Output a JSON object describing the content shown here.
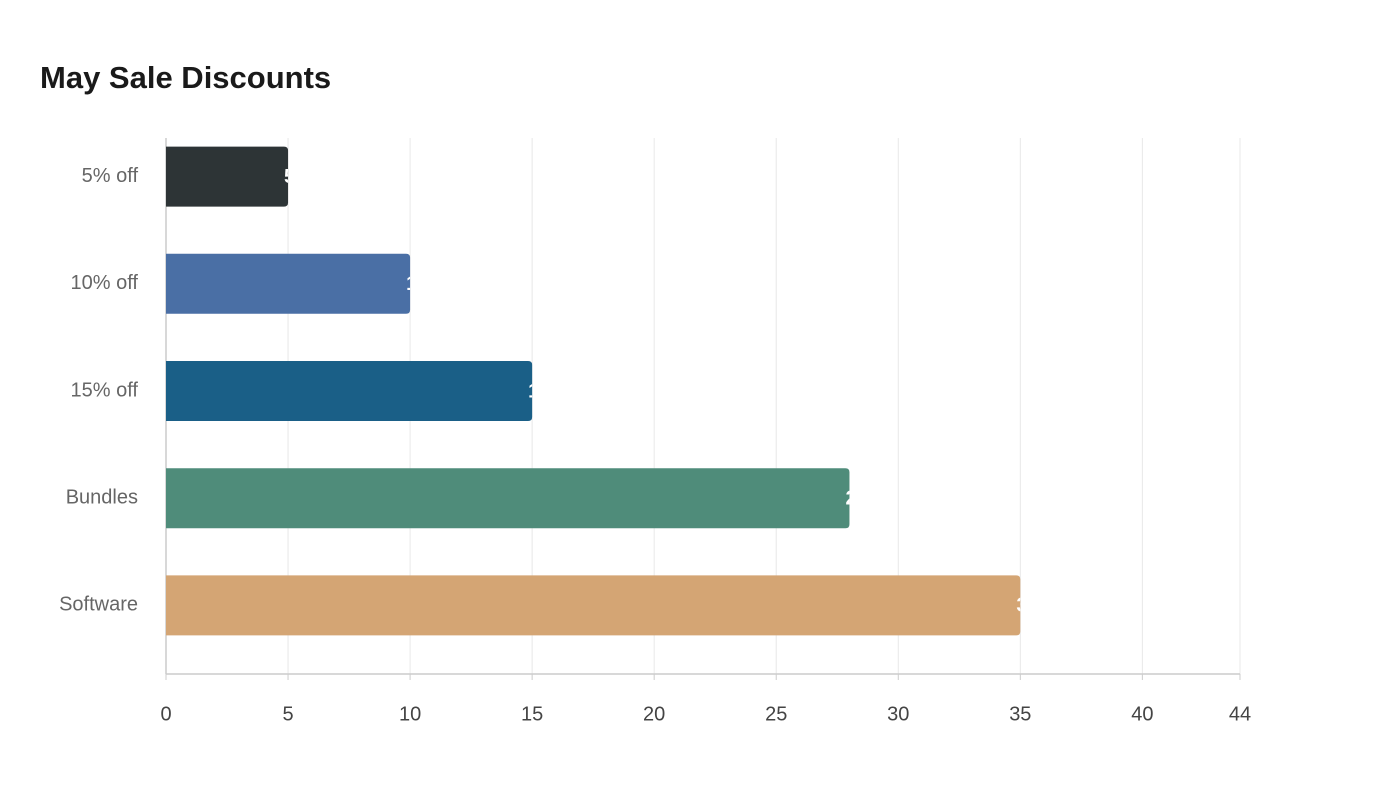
{
  "chart_data": {
    "type": "bar",
    "orientation": "horizontal",
    "title": "May Sale Discounts",
    "categories": [
      "5% off",
      "10% off",
      "15% off",
      "Bundles",
      "Software"
    ],
    "values": [
      5,
      10,
      15,
      28,
      35
    ],
    "colors": [
      "#2d3436",
      "#4a6fa5",
      "#1a5f87",
      "#4f8c7a",
      "#d4a574"
    ],
    "xlim": [
      0,
      44
    ],
    "xticks": [
      0,
      5,
      10,
      15,
      20,
      25,
      30,
      35,
      40,
      44
    ],
    "grid": true
  }
}
